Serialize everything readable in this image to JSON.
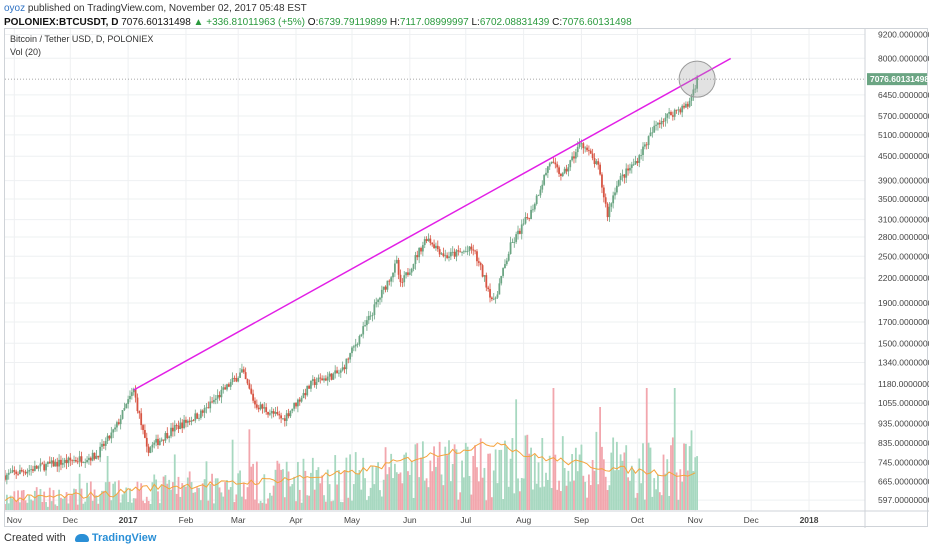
{
  "header": {
    "author": "oyoz",
    "published_text": "published on TradingView.com, November 02, 2017 05:48 EST",
    "symbol": "POLONIEX:BTCUSDT, D",
    "last": "7076.60131498",
    "change": "▲ +336.81011963 (+5%)",
    "o_label": "O:",
    "o_value": "6739.79119899",
    "h_label": "H:",
    "h_value": "7117.08999997",
    "l_label": "L:",
    "l_value": "6702.08831439",
    "c_label": "C:",
    "c_value": "7076.60131498"
  },
  "legend": {
    "series_name": "Bitcoin / Tether USD, D, POLONIEX",
    "volume_name": "Vol (20)"
  },
  "footer": {
    "created_with": "Created with",
    "brand": "TradingView"
  },
  "colors": {
    "up": "#6ba583",
    "down": "#d75442",
    "vol_up": "#a7d8c0",
    "vol_down": "#f2a6ad",
    "trendline": "#e21fe6",
    "vol_ma": "#f5a33c",
    "last_price_bg": "#6ba583"
  },
  "chart_data": {
    "type": "candlestick",
    "scale": "log",
    "title": "Bitcoin / Tether USD, D, POLONIEX",
    "ylim": [
      560,
      9500
    ],
    "y_ticks": [
      "9200.00000000",
      "8000.00000000",
      "6450.00000000",
      "5700.00000000",
      "5100.00000000",
      "4500.00000000",
      "3900.00000000",
      "3500.00000000",
      "3100.00000000",
      "2800.00000000",
      "2500.00000000",
      "2200.00000000",
      "1900.00000000",
      "1700.00000000",
      "1500.00000000",
      "1340.00000000",
      "1180.00000000",
      "1055.00000000",
      "935.00000000",
      "835.00000000",
      "745.00000000",
      "665.00000000",
      "597.00000000"
    ],
    "x_ticks": [
      "Nov",
      "Dec",
      "2017",
      "Feb",
      "Mar",
      "Apr",
      "May",
      "Jun",
      "Jul",
      "Aug",
      "Sep",
      "Oct",
      "Nov",
      "Dec",
      "2018"
    ],
    "x_range": [
      "2016-10-27",
      "2018-01-31"
    ],
    "last_price_label": "7076.60131498",
    "price_anchors": [
      [
        "2016-10-27",
        690
      ],
      [
        "2016-11-08",
        712
      ],
      [
        "2016-11-20",
        735
      ],
      [
        "2016-12-01",
        752
      ],
      [
        "2016-12-15",
        775
      ],
      [
        "2016-12-25",
        905
      ],
      [
        "2017-01-04",
        1140
      ],
      [
        "2017-01-11",
        800
      ],
      [
        "2017-01-25",
        905
      ],
      [
        "2017-02-10",
        1000
      ],
      [
        "2017-03-03",
        1270
      ],
      [
        "2017-03-10",
        1050
      ],
      [
        "2017-03-25",
        960
      ],
      [
        "2017-04-10",
        1190
      ],
      [
        "2017-04-25",
        1265
      ],
      [
        "2017-05-10",
        1730
      ],
      [
        "2017-05-25",
        2400
      ],
      [
        "2017-05-27",
        2100
      ],
      [
        "2017-06-10",
        2800
      ],
      [
        "2017-06-20",
        2500
      ],
      [
        "2017-07-05",
        2600
      ],
      [
        "2017-07-16",
        1900
      ],
      [
        "2017-07-25",
        2650
      ],
      [
        "2017-08-05",
        3250
      ],
      [
        "2017-08-15",
        4350
      ],
      [
        "2017-08-22",
        4000
      ],
      [
        "2017-09-01",
        4900
      ],
      [
        "2017-09-10",
        4200
      ],
      [
        "2017-09-15",
        3200
      ],
      [
        "2017-09-20",
        3850
      ],
      [
        "2017-09-30",
        4350
      ],
      [
        "2017-10-12",
        5500
      ],
      [
        "2017-10-22",
        5900
      ],
      [
        "2017-10-28",
        6050
      ],
      [
        "2017-11-02",
        7076.6
      ]
    ],
    "volume_anchors": [
      [
        "2016-10-27",
        600
      ],
      [
        "2016-12-25",
        620
      ],
      [
        "2017-01-05",
        640
      ],
      [
        "2017-03-01",
        660
      ],
      [
        "2017-05-01",
        700
      ],
      [
        "2017-06-01",
        760
      ],
      [
        "2017-07-20",
        840
      ],
      [
        "2017-08-01",
        780
      ],
      [
        "2017-09-15",
        720
      ],
      [
        "2017-11-02",
        690
      ]
    ],
    "trendline": [
      [
        "2017-01-04",
        1140
      ],
      [
        "2017-11-20",
        7990
      ]
    ],
    "highlight_circle": {
      "center": [
        "2017-11-02",
        7076.6
      ]
    }
  }
}
